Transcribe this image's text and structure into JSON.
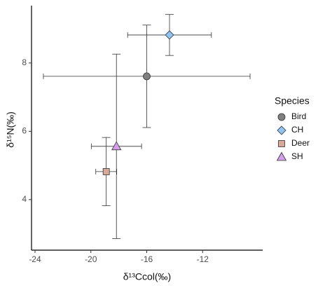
{
  "chart_data": {
    "type": "scatter",
    "x_label": "δ¹³Ccol(‰)",
    "y_label": "δ¹⁵N(‰)",
    "legend_title": "Species",
    "legend": "right",
    "xlim": [
      -24.25,
      -7.7
    ],
    "xticks": [
      -24,
      -20,
      -16,
      -12
    ],
    "ylim": [
      2.52,
      9.68
    ],
    "yticks": [
      4,
      6,
      8
    ],
    "series": [
      {
        "name": "Bird",
        "color": "#808080",
        "marker": "circle",
        "x": [
          -16.0
        ],
        "y": [
          7.61
        ],
        "xerr": [
          7.4
        ],
        "yerr": [
          1.5
        ]
      },
      {
        "name": "CH",
        "color": "#8ec5f5",
        "marker": "diamond",
        "x": [
          -14.37
        ],
        "y": [
          8.82
        ],
        "xerr": [
          3.0
        ],
        "yerr": [
          0.6
        ]
      },
      {
        "name": "Deer",
        "color": "#d8a89a",
        "marker": "square",
        "x": [
          -18.9
        ],
        "y": [
          4.82
        ],
        "xerr": [
          0.75
        ],
        "yerr": [
          1.0
        ]
      },
      {
        "name": "SH",
        "color": "#d49ee8",
        "marker": "triangle",
        "x": [
          -18.17
        ],
        "y": [
          5.56
        ],
        "xerr": [
          1.8
        ],
        "yerr": [
          2.7
        ]
      }
    ]
  }
}
